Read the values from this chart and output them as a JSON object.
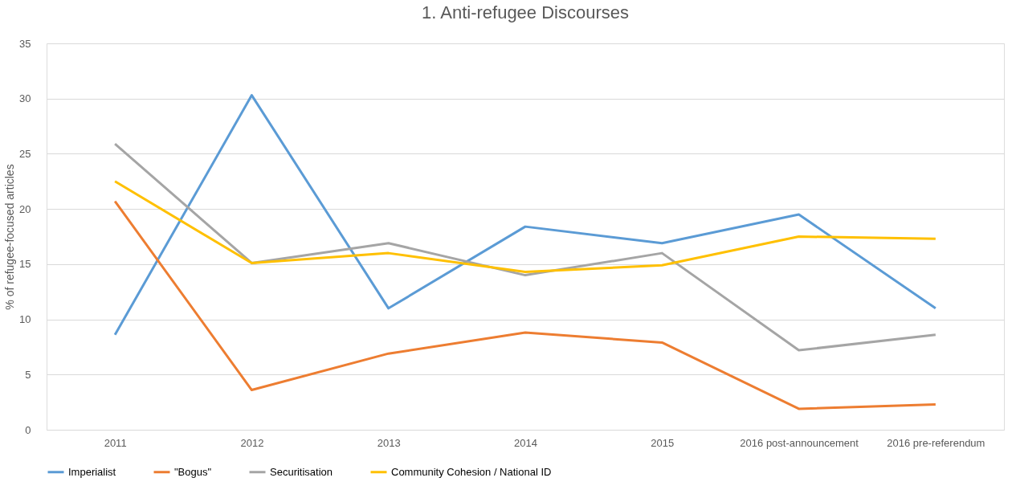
{
  "chart_data": {
    "type": "line",
    "title": "1. Anti-refugee Discourses",
    "ylabel": "% of refugee-focused  articles",
    "categories": [
      "2011",
      "2012",
      "2013",
      "2014",
      "2015",
      "2016 post-announcement",
      "2016 pre-referendum"
    ],
    "series": [
      {
        "name": "Imperialist",
        "color": "#5b9bd5",
        "values": [
          8.6,
          30.3,
          11.0,
          18.4,
          16.9,
          19.5,
          11.0
        ]
      },
      {
        "name": "\"Bogus\"",
        "color": "#ed7d31",
        "values": [
          20.7,
          3.6,
          6.9,
          8.8,
          7.9,
          1.9,
          2.3
        ]
      },
      {
        "name": "Securitisation",
        "color": "#a5a5a5",
        "values": [
          25.9,
          15.1,
          16.9,
          14.0,
          16.0,
          7.2,
          8.6
        ]
      },
      {
        "name": "Community Cohesion / National ID",
        "color": "#ffc000",
        "values": [
          22.5,
          15.1,
          16.0,
          14.3,
          14.9,
          17.5,
          17.3
        ]
      }
    ],
    "ylim": [
      0,
      35
    ],
    "yticks": [
      0,
      5,
      10,
      15,
      20,
      25,
      30,
      35
    ],
    "grid": "y",
    "legend": "bottom",
    "marker": "none",
    "line_style": "solid"
  }
}
